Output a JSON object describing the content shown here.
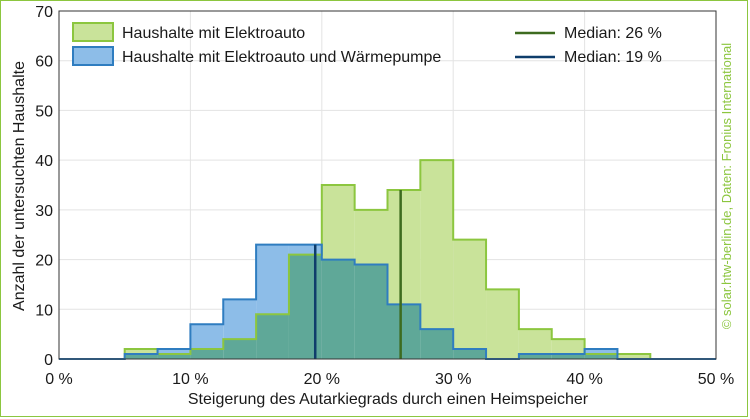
{
  "chart_data": {
    "type": "histogram",
    "xlabel": "Steigerung des Autarkiegrads durch einen Heimspeicher",
    "ylabel": "Anzahl der untersuchten Haushalte",
    "xlim": [
      0,
      50
    ],
    "ylim": [
      0,
      70
    ],
    "x_ticks": [
      0,
      10,
      20,
      30,
      40,
      50
    ],
    "x_tick_labels": [
      "0 %",
      "10 %",
      "20 %",
      "30 %",
      "40 %",
      "50 %"
    ],
    "y_ticks": [
      0,
      10,
      20,
      30,
      40,
      50,
      60,
      70
    ],
    "y_tick_labels": [
      "0",
      "10",
      "20",
      "30",
      "40",
      "50",
      "60",
      "70"
    ],
    "grid": true,
    "legend_position": "top",
    "bin_edges": [
      0,
      2.5,
      5,
      7.5,
      10,
      12.5,
      15,
      17.5,
      20,
      22.5,
      25,
      27.5,
      30,
      32.5,
      35,
      37.5,
      40,
      42.5,
      45,
      47.5,
      50
    ],
    "series": [
      {
        "name": "Haushalte mit Elektroauto",
        "color": "#8cc63f",
        "fill": "#c9e39a",
        "counts": [
          0,
          0,
          2,
          1,
          2,
          4,
          9,
          21,
          35,
          30,
          34,
          40,
          24,
          14,
          6,
          4,
          1,
          1,
          0,
          0
        ]
      },
      {
        "name": "Haushalte mit Elektroauto und Wärmepumpe",
        "color": "#2f7dc0",
        "fill": "#8dbde8",
        "counts": [
          0,
          0,
          1,
          2,
          7,
          12,
          23,
          23,
          20,
          19,
          11,
          6,
          2,
          0,
          1,
          1,
          2,
          0,
          0,
          0
        ]
      }
    ],
    "medians": [
      {
        "label": "Median: 26 %",
        "value": 26,
        "color": "#3d6b1f"
      },
      {
        "label": "Median: 19 %",
        "value": 19.5,
        "color": "#0f3d6b"
      }
    ],
    "overlap_fill": "#5fa898"
  },
  "credit": "© solar.htw-berlin.de, Daten: Fronius International"
}
